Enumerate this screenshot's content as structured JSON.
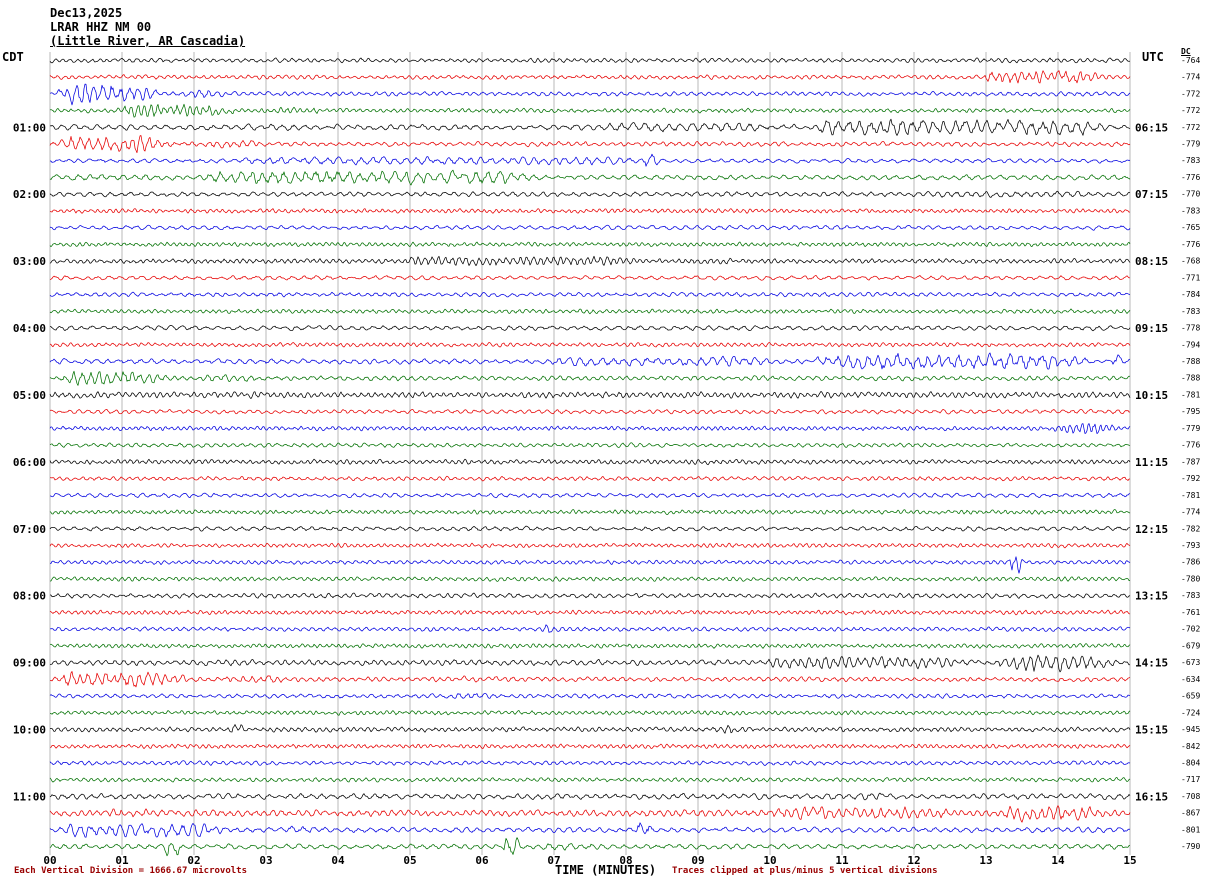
{
  "title": {
    "date": "Dec13,2025",
    "station": "LRAR HHZ NM 00",
    "location": "(Little River, AR Cascadia)"
  },
  "headers": {
    "left_tz": "CDT",
    "right_tz": "UTC",
    "dc": "DC"
  },
  "x_axis": {
    "label": "TIME (MINUTES)",
    "ticks": [
      "00",
      "01",
      "02",
      "03",
      "04",
      "05",
      "06",
      "07",
      "08",
      "09",
      "10",
      "11",
      "12",
      "13",
      "14",
      "15"
    ]
  },
  "footer": {
    "scale_note": "Each Vertical Division = 1666.67 microvolts",
    "clip_note": "Traces clipped at plus/minus 5 vertical divisions"
  },
  "colors": {
    "black": "#000000",
    "red": "#e60000",
    "blue": "#0000e0",
    "green": "#007000",
    "grid": "#a8a8a8",
    "note": "#990000"
  },
  "chart_data": {
    "type": "line",
    "subtype": "helicorder seismogram: 48 traces, 15 minutes per trace, colors cycle black/red/blue/green",
    "title": "LRAR HHZ NM 00 (Little River, AR Cascadia) Dec13,2025",
    "xlabel": "TIME (MINUTES)",
    "x_range_minutes": [
      0,
      15
    ],
    "left_time_labels": [
      "01:00",
      "02:00",
      "03:00",
      "04:00",
      "05:00",
      "06:00",
      "07:00",
      "08:00",
      "09:00",
      "10:00",
      "11:00"
    ],
    "right_time_labels": [
      "06:15",
      "07:15",
      "08:15",
      "09:15",
      "10:15",
      "11:15",
      "12:15",
      "13:15",
      "14:15",
      "15:15",
      "16:15"
    ],
    "rows": [
      {
        "cdt": "",
        "utc": "",
        "dc": -764,
        "color": "black",
        "base": 1.0,
        "events": []
      },
      {
        "cdt": "",
        "utc": "",
        "dc": -774,
        "color": "red",
        "base": 1.0,
        "events": [
          [
            12.8,
            15,
            3.0
          ]
        ]
      },
      {
        "cdt": "",
        "utc": "",
        "dc": -772,
        "color": "blue",
        "base": 1.0,
        "events": [
          [
            0,
            1.7,
            4.8
          ],
          [
            1.7,
            2.6,
            2.0
          ]
        ]
      },
      {
        "cdt": "",
        "utc": "",
        "dc": -772,
        "color": "green",
        "base": 1.0,
        "events": [
          [
            0.8,
            2.9,
            3.0
          ],
          [
            2.9,
            4.2,
            1.5
          ]
        ]
      },
      {
        "cdt": "01:00",
        "utc": "06:15",
        "dc": -772,
        "color": "black",
        "base": 1.3,
        "events": [
          [
            7.5,
            10.5,
            2.0
          ],
          [
            10.5,
            15,
            3.8
          ]
        ]
      },
      {
        "cdt": "",
        "utc": "",
        "dc": -779,
        "color": "red",
        "base": 1.1,
        "events": [
          [
            0,
            1.9,
            4.0
          ],
          [
            1.9,
            3.2,
            2.0
          ]
        ]
      },
      {
        "cdt": "",
        "utc": "",
        "dc": -783,
        "color": "blue",
        "base": 1.0,
        "events": [
          [
            2.5,
            8.7,
            1.8
          ],
          [
            8.2,
            8.5,
            3.5
          ]
        ]
      },
      {
        "cdt": "",
        "utc": "",
        "dc": -776,
        "color": "green",
        "base": 1.2,
        "events": [
          [
            0,
            2,
            1.6
          ],
          [
            2,
            7,
            3.2
          ]
        ]
      },
      {
        "cdt": "02:00",
        "utc": "07:15",
        "dc": -770,
        "color": "black",
        "base": 1.1,
        "events": [
          [
            12,
            15,
            1.4
          ]
        ]
      },
      {
        "cdt": "",
        "utc": "",
        "dc": -783,
        "color": "red",
        "base": 1.0,
        "events": []
      },
      {
        "cdt": "",
        "utc": "",
        "dc": -765,
        "color": "blue",
        "base": 1.0,
        "events": []
      },
      {
        "cdt": "",
        "utc": "",
        "dc": -776,
        "color": "green",
        "base": 1.0,
        "events": []
      },
      {
        "cdt": "03:00",
        "utc": "08:15",
        "dc": -768,
        "color": "black",
        "base": 1.1,
        "events": [
          [
            4.7,
            8.6,
            2.2
          ],
          [
            8.6,
            10,
            1.4
          ]
        ]
      },
      {
        "cdt": "",
        "utc": "",
        "dc": -771,
        "color": "red",
        "base": 1.0,
        "events": []
      },
      {
        "cdt": "",
        "utc": "",
        "dc": -784,
        "color": "blue",
        "base": 1.0,
        "events": []
      },
      {
        "cdt": "",
        "utc": "",
        "dc": -783,
        "color": "green",
        "base": 1.0,
        "events": []
      },
      {
        "cdt": "04:00",
        "utc": "09:15",
        "dc": -778,
        "color": "black",
        "base": 1.1,
        "events": []
      },
      {
        "cdt": "",
        "utc": "",
        "dc": -794,
        "color": "red",
        "base": 1.0,
        "events": []
      },
      {
        "cdt": "",
        "utc": "",
        "dc": -788,
        "color": "blue",
        "base": 1.2,
        "events": [
          [
            6.8,
            10.5,
            2.2
          ],
          [
            10.5,
            14.7,
            3.8
          ],
          [
            14.7,
            15,
            3.0
          ]
        ]
      },
      {
        "cdt": "",
        "utc": "",
        "dc": -788,
        "color": "green",
        "base": 1.1,
        "events": [
          [
            0,
            1.9,
            3.4
          ],
          [
            1.9,
            3.2,
            1.8
          ]
        ]
      },
      {
        "cdt": "05:00",
        "utc": "10:15",
        "dc": -781,
        "color": "black",
        "base": 1.4,
        "events": []
      },
      {
        "cdt": "",
        "utc": "",
        "dc": -795,
        "color": "red",
        "base": 1.0,
        "events": []
      },
      {
        "cdt": "",
        "utc": "",
        "dc": -779,
        "color": "blue",
        "base": 1.0,
        "events": [
          [
            13.8,
            15,
            2.6
          ]
        ]
      },
      {
        "cdt": "",
        "utc": "",
        "dc": -776,
        "color": "green",
        "base": 1.0,
        "events": []
      },
      {
        "cdt": "06:00",
        "utc": "11:15",
        "dc": -787,
        "color": "black",
        "base": 1.1,
        "events": []
      },
      {
        "cdt": "",
        "utc": "",
        "dc": -792,
        "color": "red",
        "base": 1.0,
        "events": []
      },
      {
        "cdt": "",
        "utc": "",
        "dc": -781,
        "color": "blue",
        "base": 1.0,
        "events": []
      },
      {
        "cdt": "",
        "utc": "",
        "dc": -774,
        "color": "green",
        "base": 1.0,
        "events": []
      },
      {
        "cdt": "07:00",
        "utc": "12:15",
        "dc": -782,
        "color": "black",
        "base": 1.1,
        "events": []
      },
      {
        "cdt": "",
        "utc": "",
        "dc": -793,
        "color": "red",
        "base": 1.0,
        "events": []
      },
      {
        "cdt": "",
        "utc": "",
        "dc": -786,
        "color": "blue",
        "base": 1.0,
        "events": [
          [
            13.3,
            13.55,
            4.5
          ]
        ]
      },
      {
        "cdt": "",
        "utc": "",
        "dc": -780,
        "color": "green",
        "base": 1.0,
        "events": []
      },
      {
        "cdt": "08:00",
        "utc": "13:15",
        "dc": -783,
        "color": "black",
        "base": 1.1,
        "events": []
      },
      {
        "cdt": "",
        "utc": "",
        "dc": -761,
        "color": "red",
        "base": 1.0,
        "events": []
      },
      {
        "cdt": "",
        "utc": "",
        "dc": -702,
        "color": "blue",
        "base": 1.0,
        "events": [
          [
            6.8,
            7.05,
            3.0
          ]
        ]
      },
      {
        "cdt": "",
        "utc": "",
        "dc": -679,
        "color": "green",
        "base": 1.0,
        "events": []
      },
      {
        "cdt": "09:00",
        "utc": "14:15",
        "dc": -673,
        "color": "black",
        "base": 1.3,
        "events": [
          [
            9.8,
            13,
            2.8
          ],
          [
            13,
            15,
            4.2
          ]
        ]
      },
      {
        "cdt": "",
        "utc": "",
        "dc": -634,
        "color": "red",
        "base": 1.1,
        "events": [
          [
            0,
            2.2,
            3.8
          ],
          [
            2.2,
            3.6,
            2.0
          ],
          [
            5.5,
            6.5,
            1.5
          ]
        ]
      },
      {
        "cdt": "",
        "utc": "",
        "dc": -659,
        "color": "blue",
        "base": 1.0,
        "events": [
          [
            5.3,
            6.3,
            1.8
          ]
        ]
      },
      {
        "cdt": "",
        "utc": "",
        "dc": -724,
        "color": "green",
        "base": 1.0,
        "events": []
      },
      {
        "cdt": "10:00",
        "utc": "15:15",
        "dc": -945,
        "color": "black",
        "base": 1.1,
        "events": [
          [
            2.45,
            2.75,
            2.6
          ],
          [
            9.3,
            9.6,
            2.6
          ]
        ]
      },
      {
        "cdt": "",
        "utc": "",
        "dc": -842,
        "color": "red",
        "base": 1.0,
        "events": []
      },
      {
        "cdt": "",
        "utc": "",
        "dc": -804,
        "color": "blue",
        "base": 1.0,
        "events": []
      },
      {
        "cdt": "",
        "utc": "",
        "dc": -717,
        "color": "green",
        "base": 1.0,
        "events": []
      },
      {
        "cdt": "11:00",
        "utc": "16:15",
        "dc": -708,
        "color": "black",
        "base": 1.3,
        "events": [
          [
            10.5,
            12.2,
            1.7
          ]
        ]
      },
      {
        "cdt": "",
        "utc": "",
        "dc": -867,
        "color": "red",
        "base": 1.6,
        "events": [
          [
            0,
            2,
            2.0
          ],
          [
            9.8,
            13,
            2.8
          ],
          [
            13,
            15,
            3.6
          ]
        ]
      },
      {
        "cdt": "",
        "utc": "",
        "dc": -801,
        "color": "blue",
        "base": 1.2,
        "events": [
          [
            0,
            2.8,
            3.2
          ],
          [
            3.0,
            4.2,
            1.6
          ],
          [
            8.1,
            8.4,
            4.5
          ]
        ]
      },
      {
        "cdt": "",
        "utc": "",
        "dc": -790,
        "color": "green",
        "base": 1.2,
        "events": [
          [
            1.55,
            1.9,
            5.0
          ],
          [
            6.25,
            6.6,
            5.0
          ],
          [
            6.6,
            8,
            1.5
          ]
        ]
      }
    ]
  }
}
